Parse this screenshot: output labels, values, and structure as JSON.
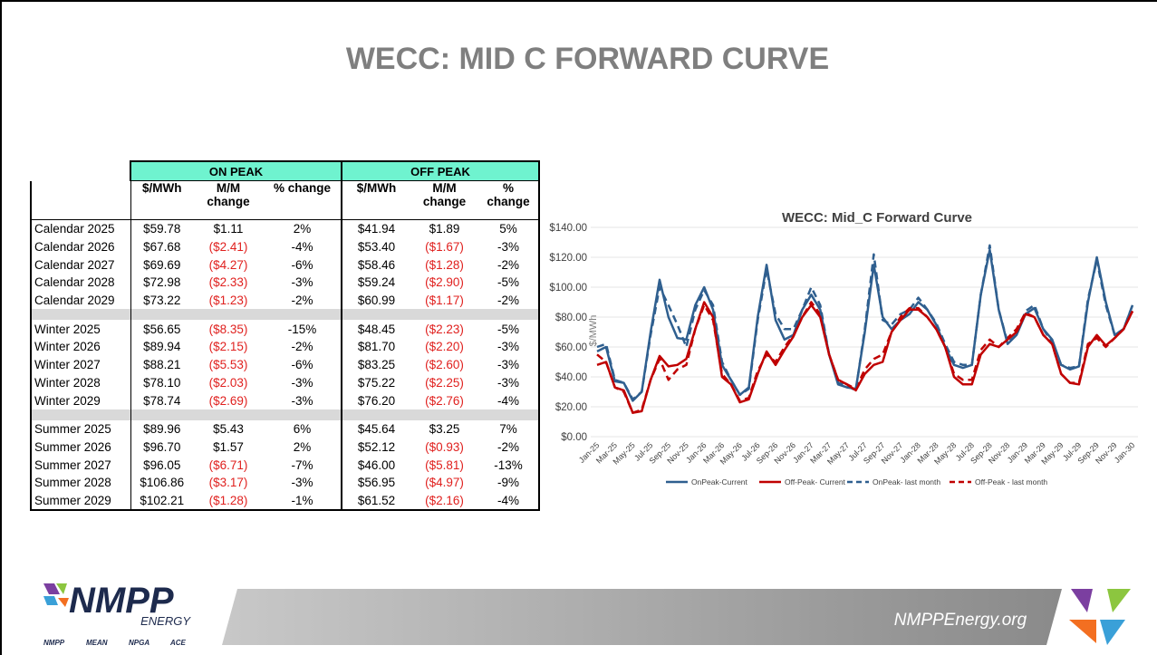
{
  "title": "WECC: MID C FORWARD CURVE",
  "table": {
    "groups": [
      "ON PEAK",
      "OFF PEAK"
    ],
    "columns": [
      "$/MWh",
      "M/M change",
      "% change",
      "$/MWh",
      "M/M change",
      "% change"
    ],
    "sections": [
      [
        [
          "Calendar 2025",
          "$59.78",
          "$1.11",
          "2%",
          "$41.94",
          "$1.89",
          "5%"
        ],
        [
          "Calendar 2026",
          "$67.68",
          "($2.41)",
          "-4%",
          "$53.40",
          "($1.67)",
          "-3%"
        ],
        [
          "Calendar 2027",
          "$69.69",
          "($4.27)",
          "-6%",
          "$58.46",
          "($1.28)",
          "-2%"
        ],
        [
          "Calendar 2028",
          "$72.98",
          "($2.33)",
          "-3%",
          "$59.24",
          "($2.90)",
          "-5%"
        ],
        [
          "Calendar 2029",
          "$73.22",
          "($1.23)",
          "-2%",
          "$60.99",
          "($1.17)",
          "-2%"
        ]
      ],
      [
        [
          "Winter 2025",
          "$56.65",
          "($8.35)",
          "-15%",
          "$48.45",
          "($2.23)",
          "-5%"
        ],
        [
          "Winter 2026",
          "$89.94",
          "($2.15)",
          "-2%",
          "$81.70",
          "($2.20)",
          "-3%"
        ],
        [
          "Winter 2027",
          "$88.21",
          "($5.53)",
          "-6%",
          "$83.25",
          "($2.60)",
          "-3%"
        ],
        [
          "Winter 2028",
          "$78.10",
          "($2.03)",
          "-3%",
          "$75.22",
          "($2.25)",
          "-3%"
        ],
        [
          "Winter 2029",
          "$78.74",
          "($2.69)",
          "-3%",
          "$76.20",
          "($2.76)",
          "-4%"
        ]
      ],
      [
        [
          "Summer 2025",
          "$89.96",
          "$5.43",
          "6%",
          "$45.64",
          "$3.25",
          "7%"
        ],
        [
          "Summer 2026",
          "$96.70",
          "$1.57",
          "2%",
          "$52.12",
          "($0.93)",
          "-2%"
        ],
        [
          "Summer 2027",
          "$96.05",
          "($6.71)",
          "-7%",
          "$46.00",
          "($5.81)",
          "-13%"
        ],
        [
          "Summer 2028",
          "$106.86",
          "($3.17)",
          "-3%",
          "$56.95",
          "($4.97)",
          "-9%"
        ],
        [
          "Summer 2029",
          "$102.21",
          "($1.28)",
          "-1%",
          "$61.52",
          "($2.16)",
          "-4%"
        ]
      ]
    ]
  },
  "chart_data": {
    "type": "line",
    "title": "WECC: Mid_C  Forward Curve",
    "y_label": "$/MWh",
    "categories": [
      "Jan-25",
      null,
      "Mar-25",
      null,
      "May-25",
      null,
      "Jul-25",
      null,
      "Sep-25",
      null,
      "Nov-25",
      null,
      "Jan-26",
      null,
      "Mar-26",
      null,
      "May-26",
      null,
      "Jul-26",
      null,
      "Sep-26",
      null,
      "Nov-26",
      null,
      "Jan-27",
      null,
      "Mar-27",
      null,
      "May-27",
      null,
      "Jul-27",
      null,
      "Sep-27",
      null,
      "Nov-27",
      null,
      "Jan-28",
      null,
      "Mar-28",
      null,
      "May-28",
      null,
      "Jul-28",
      null,
      "Sep-28",
      null,
      "Nov-28",
      null,
      "Jan-29",
      null,
      "Mar-29",
      null,
      "May-29",
      null,
      "Jul-29",
      null,
      "Sep-29",
      null,
      "Nov-29",
      null,
      "Jan-30"
    ],
    "series": [
      {
        "name": "OnPeak-Current",
        "color": "#2f5f8f",
        "dash": false,
        "values": [
          57,
          60,
          37,
          36,
          24,
          30,
          70,
          105,
          80,
          66,
          65,
          88,
          100,
          85,
          48,
          38,
          28,
          33,
          80,
          115,
          78,
          65,
          68,
          85,
          95,
          85,
          55,
          35,
          33,
          32,
          70,
          115,
          80,
          72,
          78,
          82,
          90,
          85,
          75,
          60,
          48,
          46,
          48,
          95,
          125,
          85,
          62,
          68,
          82,
          86,
          72,
          65,
          48,
          45,
          47,
          90,
          120,
          90,
          68,
          72,
          88
        ]
      },
      {
        "name": "Off-Peak- Current",
        "color": "#c00000",
        "dash": false,
        "values": [
          48,
          50,
          33,
          31,
          16,
          17,
          38,
          54,
          47,
          48,
          52,
          72,
          90,
          80,
          40,
          35,
          23,
          25,
          42,
          57,
          48,
          58,
          67,
          80,
          88,
          80,
          55,
          38,
          35,
          31,
          42,
          48,
          50,
          70,
          78,
          85,
          85,
          80,
          72,
          60,
          40,
          35,
          35,
          55,
          62,
          60,
          65,
          70,
          82,
          80,
          68,
          62,
          42,
          36,
          35,
          60,
          68,
          61,
          66,
          72,
          84
        ]
      },
      {
        "name": "OnPeak- last month",
        "color": "#2f5f8f",
        "dash": true,
        "values": [
          60,
          62,
          38,
          36,
          25,
          30,
          68,
          100,
          88,
          75,
          60,
          85,
          98,
          88,
          50,
          38,
          28,
          32,
          78,
          112,
          82,
          72,
          72,
          85,
          100,
          88,
          55,
          36,
          34,
          31,
          72,
          122,
          78,
          75,
          82,
          85,
          93,
          85,
          76,
          62,
          50,
          48,
          48,
          95,
          128,
          85,
          63,
          68,
          84,
          88,
          72,
          63,
          48,
          46,
          47,
          92,
          118,
          88,
          68,
          72,
          88
        ]
      },
      {
        "name": "Off-Peak - last month",
        "color": "#c00000",
        "dash": true,
        "values": [
          55,
          50,
          33,
          30,
          16,
          18,
          38,
          52,
          38,
          45,
          48,
          72,
          88,
          78,
          42,
          35,
          24,
          26,
          44,
          55,
          50,
          60,
          68,
          80,
          90,
          82,
          55,
          38,
          35,
          32,
          45,
          52,
          55,
          70,
          80,
          86,
          86,
          80,
          72,
          60,
          42,
          38,
          38,
          58,
          65,
          60,
          66,
          72,
          83,
          80,
          68,
          62,
          42,
          36,
          36,
          62,
          66,
          60,
          66,
          72,
          84
        ]
      }
    ],
    "ylim": [
      0,
      140
    ],
    "yticks": [
      {
        "value": 0,
        "label": "$0.00"
      },
      {
        "value": 20,
        "label": "$20.00"
      },
      {
        "value": 40,
        "label": "$40.00"
      },
      {
        "value": 60,
        "label": "$60.00"
      },
      {
        "value": 80,
        "label": "$80.00"
      },
      {
        "value": 100,
        "label": "$100.00"
      },
      {
        "value": 120,
        "label": "$120.00"
      },
      {
        "value": 140,
        "label": "$140.00"
      }
    ],
    "grid": true,
    "legend": "bottom"
  },
  "footer": {
    "logo": "NMPP",
    "logo_sub": "ENERGY",
    "members": [
      "NMPP",
      "MEAN",
      "NPGA",
      "ACE"
    ],
    "url": "NMPPEnergy.org"
  }
}
